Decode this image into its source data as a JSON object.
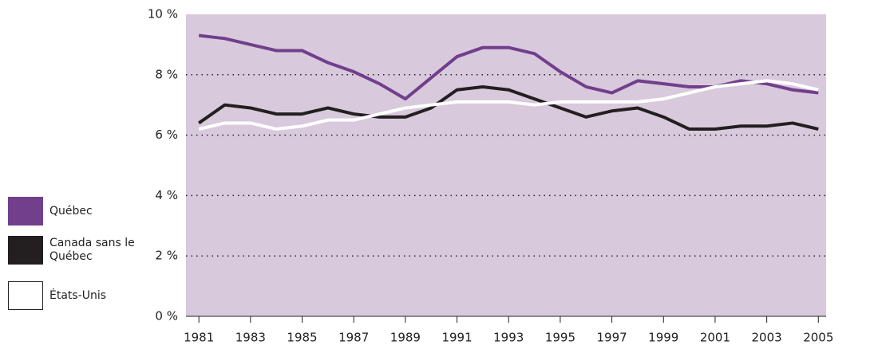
{
  "chart_data": {
    "type": "line",
    "x": [
      1981,
      1982,
      1983,
      1984,
      1985,
      1986,
      1987,
      1988,
      1989,
      1990,
      1991,
      1992,
      1993,
      1994,
      1995,
      1996,
      1997,
      1998,
      1999,
      2000,
      2001,
      2002,
      2003,
      2004,
      2005
    ],
    "series": [
      {
        "name": "Québec",
        "color": "#713f8c",
        "values": [
          9.3,
          9.2,
          9.0,
          8.8,
          8.8,
          8.4,
          8.1,
          7.7,
          7.2,
          7.9,
          8.6,
          8.9,
          8.9,
          8.7,
          8.1,
          7.6,
          7.4,
          7.8,
          7.7,
          7.6,
          7.6,
          7.8,
          7.7,
          7.5,
          7.4
        ]
      },
      {
        "name": "Canada sans le Québec",
        "color": "#231f20",
        "values": [
          6.4,
          7.0,
          6.9,
          6.7,
          6.7,
          6.9,
          6.7,
          6.6,
          6.6,
          6.9,
          7.5,
          7.6,
          7.5,
          7.2,
          6.9,
          6.6,
          6.8,
          6.9,
          6.6,
          6.2,
          6.2,
          6.3,
          6.3,
          6.4,
          6.2
        ]
      },
      {
        "name": "États-Unis",
        "color": "#ffffff",
        "values": [
          6.2,
          6.4,
          6.4,
          6.2,
          6.3,
          6.5,
          6.5,
          6.7,
          6.9,
          7.0,
          7.1,
          7.1,
          7.1,
          7.0,
          7.1,
          7.1,
          7.1,
          7.1,
          7.2,
          7.4,
          7.6,
          7.7,
          7.8,
          7.7,
          7.5
        ]
      }
    ],
    "xlim": [
      1980.5,
      2005.3
    ],
    "xticks": [
      1981,
      1983,
      1985,
      1987,
      1989,
      1991,
      1993,
      1995,
      1997,
      1999,
      2001,
      2003,
      2005
    ],
    "ylim": [
      0,
      10
    ],
    "yticks": [
      {
        "value": 0,
        "label": "0 %"
      },
      {
        "value": 2,
        "label": "2 %"
      },
      {
        "value": 4,
        "label": "4 %"
      },
      {
        "value": 6,
        "label": "6 %"
      },
      {
        "value": 8,
        "label": "8 %"
      },
      {
        "value": 10,
        "label": "10 %"
      }
    ],
    "grid": true,
    "legend": "left"
  }
}
